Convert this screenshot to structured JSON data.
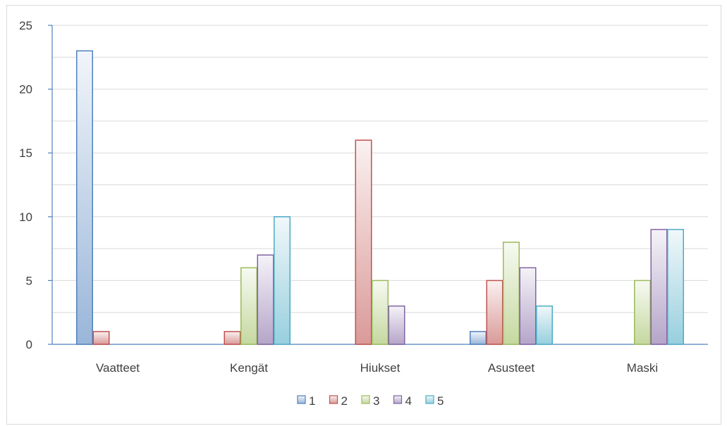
{
  "chart_data": {
    "type": "bar",
    "categories": [
      "Vaatteet",
      "Kengät",
      "Hiukset",
      "Asusteet",
      "Maski"
    ],
    "series": [
      {
        "name": "1",
        "values": [
          23,
          0,
          0,
          1,
          0
        ],
        "color": "#4f81bd"
      },
      {
        "name": "2",
        "values": [
          1,
          1,
          16,
          5,
          0
        ],
        "color": "#c0504d"
      },
      {
        "name": "3",
        "values": [
          0,
          6,
          5,
          8,
          5
        ],
        "color": "#9bbb59"
      },
      {
        "name": "4",
        "values": [
          0,
          7,
          3,
          6,
          9
        ],
        "color": "#8064a2"
      },
      {
        "name": "5",
        "values": [
          0,
          10,
          0,
          3,
          9
        ],
        "color": "#4bacc6"
      }
    ],
    "yticks": [
      0,
      5,
      10,
      15,
      20,
      25
    ],
    "ylim": [
      0,
      25
    ],
    "title": "",
    "xlabel": "",
    "ylabel": "",
    "grid": true,
    "legend_position": "bottom"
  }
}
